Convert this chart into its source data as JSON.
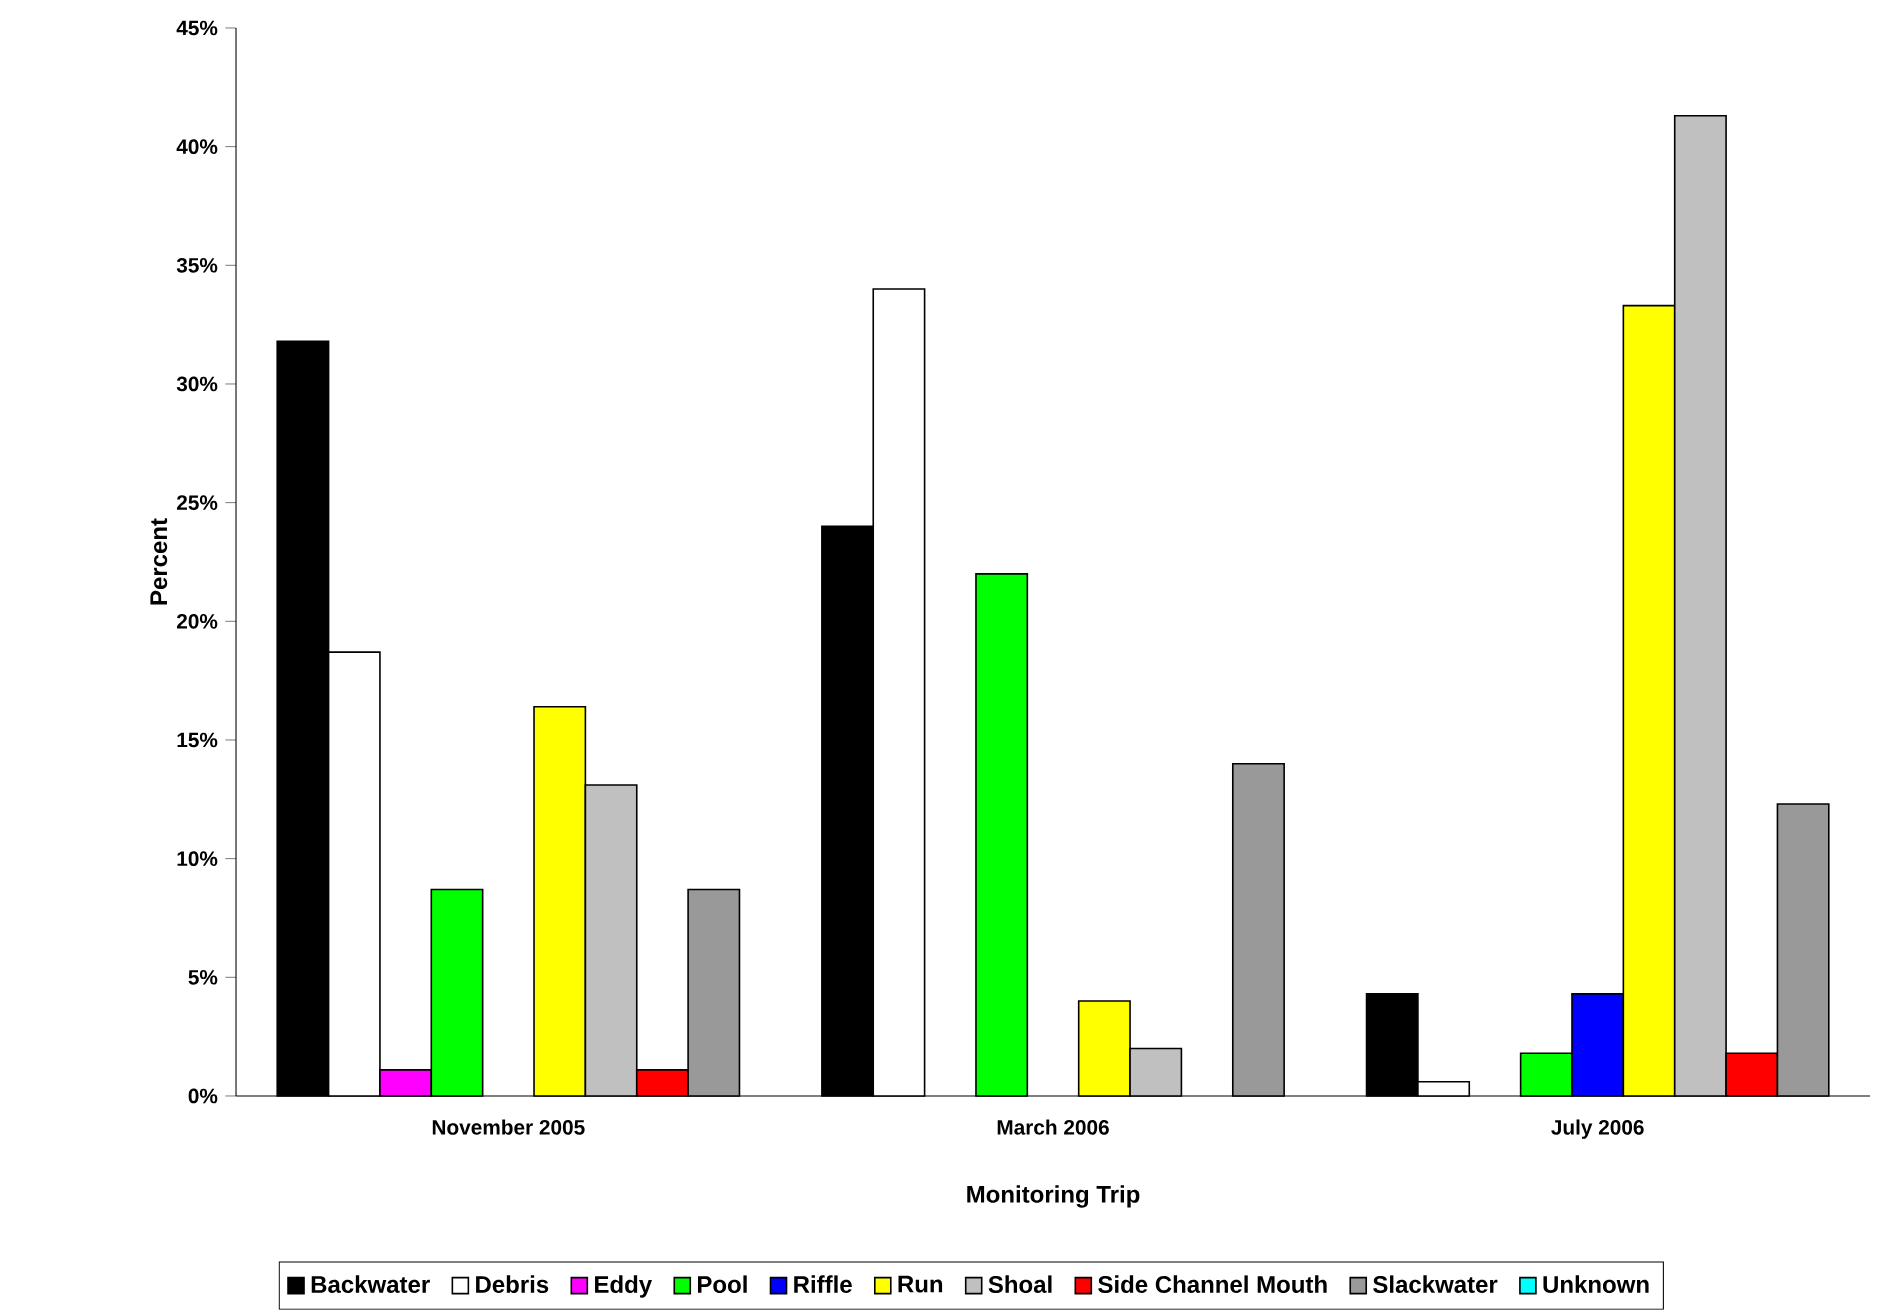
{
  "chart_data": {
    "type": "bar",
    "xlabel": "Monitoring Trip",
    "ylabel": "Percent",
    "categories": [
      "November 2005",
      "March 2006",
      "July 2006"
    ],
    "series": [
      {
        "name": "Backwater",
        "color": "#000000",
        "values": [
          31.8,
          24.0,
          4.3
        ]
      },
      {
        "name": "Debris",
        "color": "#ffffff",
        "values": [
          18.7,
          34.0,
          0.6
        ]
      },
      {
        "name": "Eddy",
        "color": "#ff00ff",
        "values": [
          1.1,
          null,
          null
        ]
      },
      {
        "name": "Pool",
        "color": "#00ff00",
        "values": [
          8.7,
          22.0,
          1.8
        ]
      },
      {
        "name": "Riffle",
        "color": "#0000ff",
        "values": [
          null,
          null,
          4.3
        ]
      },
      {
        "name": "Run",
        "color": "#ffff00",
        "values": [
          16.4,
          4.0,
          33.3
        ]
      },
      {
        "name": "Shoal",
        "color": "#c0c0c0",
        "values": [
          13.1,
          2.0,
          41.3
        ]
      },
      {
        "name": "Side Channel Mouth",
        "color": "#ff0000",
        "values": [
          1.1,
          null,
          1.8
        ]
      },
      {
        "name": "Slackwater",
        "color": "#999999",
        "values": [
          8.7,
          14.0,
          12.3
        ]
      },
      {
        "name": "Unknown",
        "color": "#00ffff",
        "values": [
          null,
          null,
          null
        ]
      }
    ],
    "ylim": [
      0,
      45
    ],
    "yticks": [
      {
        "value": 0,
        "label": "0%"
      },
      {
        "value": 5,
        "label": "5%"
      },
      {
        "value": 10,
        "label": "10%"
      },
      {
        "value": 15,
        "label": "15%"
      },
      {
        "value": 20,
        "label": "20%"
      },
      {
        "value": 25,
        "label": "25%"
      },
      {
        "value": 30,
        "label": "30%"
      },
      {
        "value": 35,
        "label": "35%"
      },
      {
        "value": 40,
        "label": "40%"
      },
      {
        "value": 45,
        "label": "45%"
      }
    ],
    "legend": "bottom",
    "grid": false
  }
}
